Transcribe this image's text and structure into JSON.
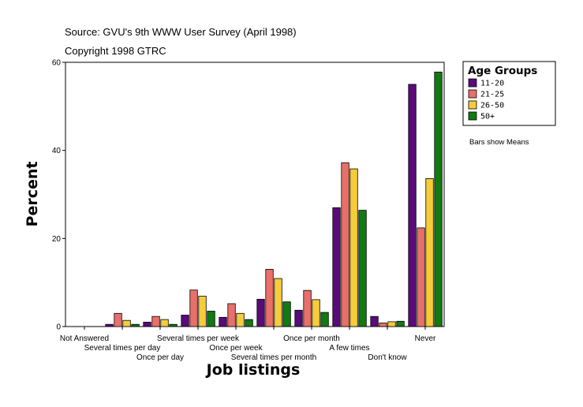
{
  "chart_data": {
    "type": "bar",
    "source": "Source: GVU's 9th WWW User Survey (April 1998)",
    "copyright": "Copyright 1998 GTRC",
    "xlabel": "Job listings",
    "ylabel": "Percent",
    "ylim": [
      0,
      60
    ],
    "yticks": [
      0,
      20,
      40,
      60
    ],
    "categories": [
      "Not Answered",
      "Several times per day",
      "Once per day",
      "Several times per week",
      "Once per week",
      "Several times per month",
      "Once per month",
      "A few times",
      "Don't know",
      "Never"
    ],
    "legend_title": "Age Groups",
    "note": "Bars show Means",
    "series": [
      {
        "name": "11-20",
        "color": "#5a0a7a",
        "values": [
          0,
          0.5,
          1.0,
          2.6,
          2.1,
          6.2,
          3.7,
          27.0,
          2.3,
          55.0
        ]
      },
      {
        "name": "21-25",
        "color": "#e8706a",
        "values": [
          0,
          3.0,
          2.3,
          8.3,
          5.2,
          13.0,
          8.2,
          37.2,
          0.8,
          22.4
        ]
      },
      {
        "name": "26-50",
        "color": "#f5cc3a",
        "values": [
          0,
          1.4,
          1.6,
          6.9,
          3.0,
          10.9,
          6.1,
          35.8,
          1.1,
          33.6
        ]
      },
      {
        "name": "50+",
        "color": "#117a11",
        "values": [
          0,
          0.5,
          0.5,
          3.5,
          1.6,
          5.6,
          3.2,
          26.4,
          1.2,
          57.8
        ]
      }
    ]
  }
}
